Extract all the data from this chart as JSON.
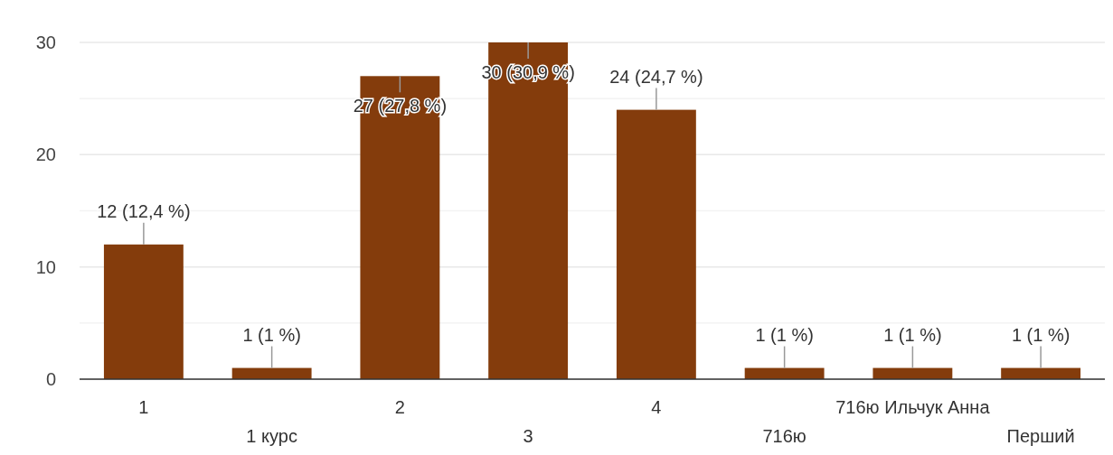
{
  "chart_data": {
    "type": "bar",
    "categories": [
      "1",
      "1 курс",
      "2",
      "3",
      "4",
      "716ю",
      "716ю Ильчук Анна",
      "Перший"
    ],
    "values": [
      12,
      1,
      27,
      30,
      24,
      1,
      1,
      1
    ],
    "value_labels": [
      "12 (12,4 %)",
      "1 (1 %)",
      "27 (27,8 %)",
      "30 (30,9 %)",
      "24 (24,7 %)",
      "1 (1 %)",
      "1 (1 %)",
      "1 (1 %)"
    ],
    "color": "#843c0c",
    "ylim": [
      0,
      30
    ],
    "yticks": [
      0,
      {
        "value": 5,
        "label": null
      },
      10,
      {
        "value": 15,
        "label": null
      },
      20,
      {
        "value": 25,
        "label": null
      },
      30
    ],
    "grid": "y"
  }
}
